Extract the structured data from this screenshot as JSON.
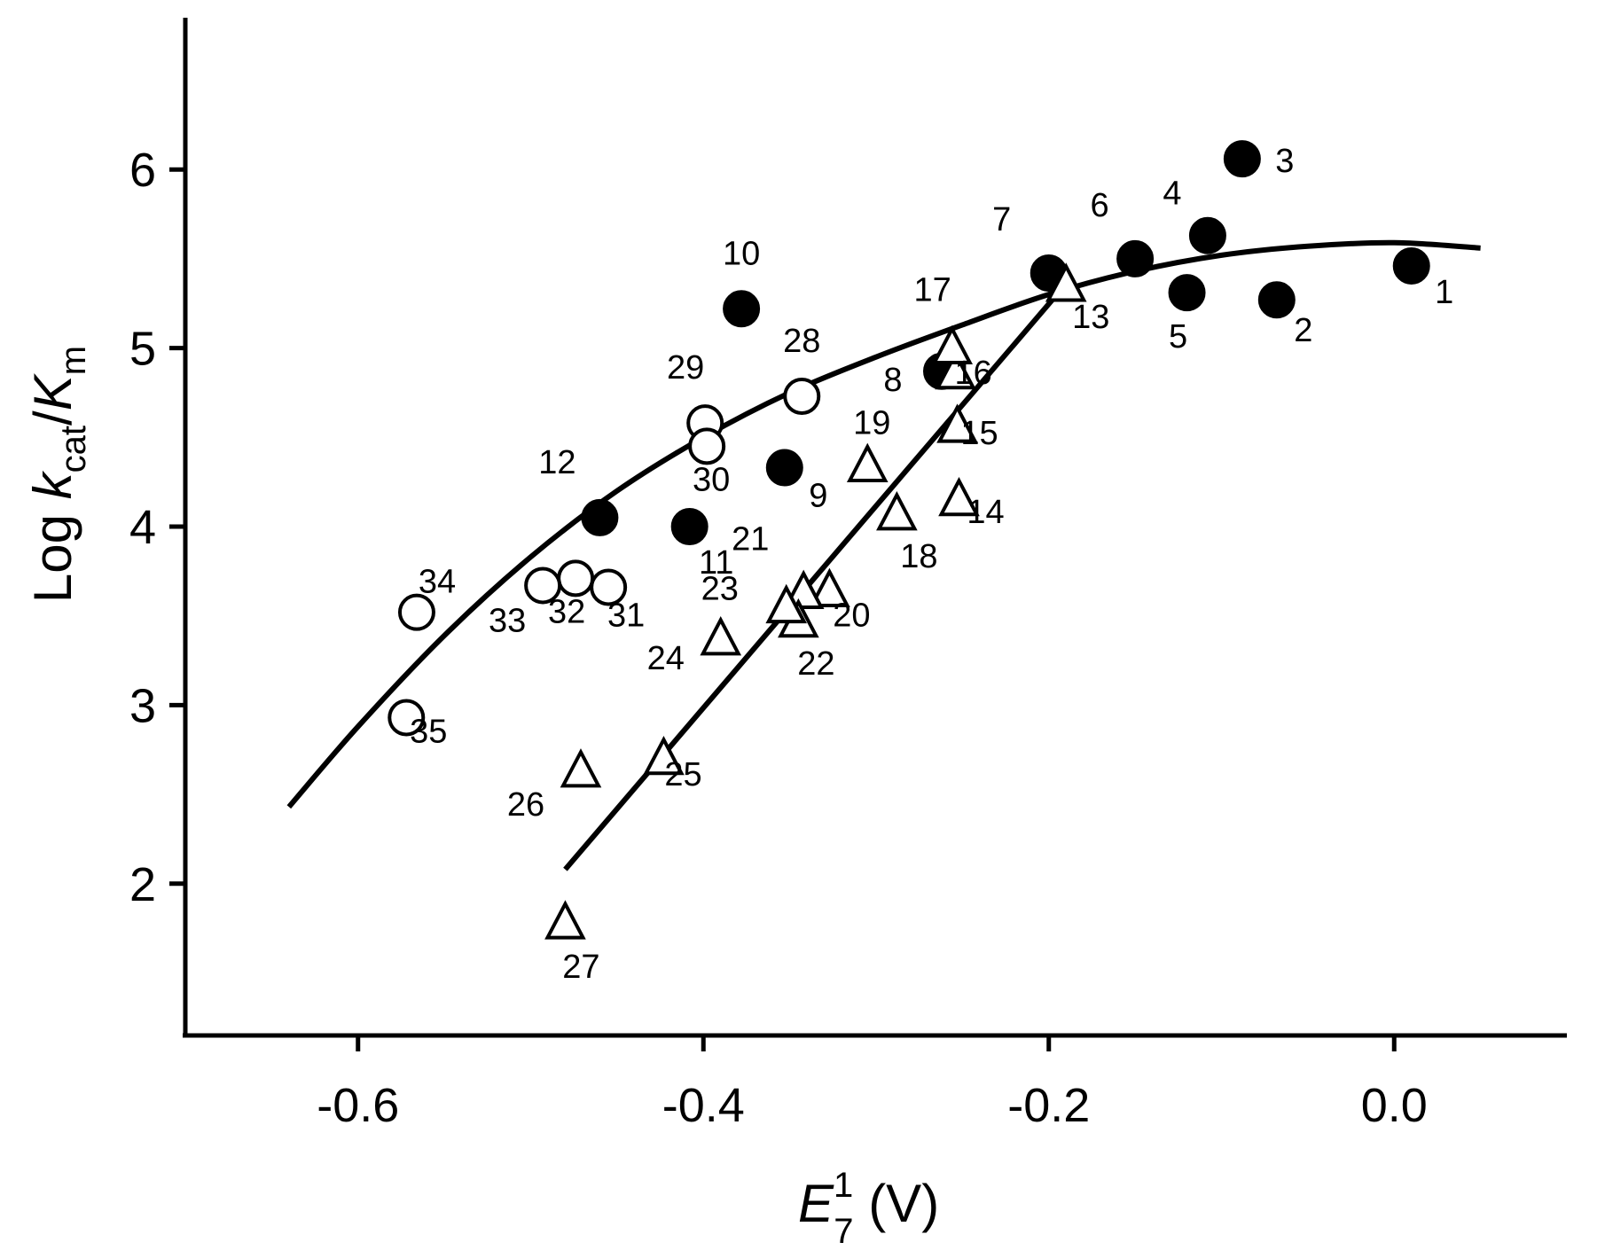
{
  "chart_data": {
    "type": "scatter",
    "xlabel": {
      "main": "E",
      "sup": "1",
      "sub": "7",
      "unit": " (V)"
    },
    "ylabel": {
      "prefix": "Log ",
      "k": "k",
      "cat": "cat",
      "slash": "/",
      "K": "K",
      "m": "m"
    },
    "xlim": [
      -0.7,
      0.1
    ],
    "ylim": [
      1.15,
      6.85
    ],
    "x_ticks": [
      -0.6,
      -0.4,
      -0.2,
      0.0
    ],
    "x_tick_labels": [
      "-0.6",
      "-0.4",
      "-0.2",
      "0.0"
    ],
    "y_ticks": [
      2,
      3,
      4,
      5,
      6
    ],
    "y_tick_labels": [
      "2",
      "3",
      "4",
      "5",
      "6"
    ],
    "series": [
      {
        "name": "filled-circles",
        "marker": "filled-circle",
        "points": [
          {
            "id": "1",
            "x": 0.01,
            "y": 5.46
          },
          {
            "id": "2",
            "x": -0.068,
            "y": 5.27
          },
          {
            "id": "3",
            "x": -0.088,
            "y": 6.06
          },
          {
            "id": "4",
            "x": -0.108,
            "y": 5.63
          },
          {
            "id": "5",
            "x": -0.12,
            "y": 5.31
          },
          {
            "id": "6",
            "x": -0.15,
            "y": 5.5
          },
          {
            "id": "7",
            "x": -0.2,
            "y": 5.42
          },
          {
            "id": "8",
            "x": -0.262,
            "y": 4.87
          },
          {
            "id": "9",
            "x": -0.353,
            "y": 4.33
          },
          {
            "id": "10",
            "x": -0.378,
            "y": 5.22
          },
          {
            "id": "11",
            "x": -0.408,
            "y": 4.0
          },
          {
            "id": "12",
            "x": -0.46,
            "y": 4.05
          }
        ]
      },
      {
        "name": "open-triangles",
        "marker": "open-triangle",
        "points": [
          {
            "id": "13",
            "x": -0.19,
            "y": 5.34
          },
          {
            "id": "14",
            "x": -0.252,
            "y": 4.14
          },
          {
            "id": "15",
            "x": -0.253,
            "y": 4.55
          },
          {
            "id": "16",
            "x": -0.254,
            "y": 4.85
          },
          {
            "id": "17",
            "x": -0.256,
            "y": 4.99
          },
          {
            "id": "18",
            "x": -0.288,
            "y": 4.06
          },
          {
            "id": "19",
            "x": -0.305,
            "y": 4.33
          },
          {
            "id": "20",
            "x": -0.327,
            "y": 3.63
          },
          {
            "id": "21",
            "x": -0.342,
            "y": 3.62
          },
          {
            "id": "22",
            "x": -0.345,
            "y": 3.46
          },
          {
            "id": "23",
            "x": -0.352,
            "y": 3.54
          },
          {
            "id": "24",
            "x": -0.39,
            "y": 3.36
          },
          {
            "id": "25",
            "x": -0.423,
            "y": 2.69
          },
          {
            "id": "26",
            "x": -0.471,
            "y": 2.62
          },
          {
            "id": "27",
            "x": -0.48,
            "y": 1.77
          }
        ]
      },
      {
        "name": "open-circles",
        "marker": "open-circle",
        "points": [
          {
            "id": "28",
            "x": -0.343,
            "y": 4.73
          },
          {
            "id": "29",
            "x": -0.399,
            "y": 4.58
          },
          {
            "id": "30",
            "x": -0.398,
            "y": 4.45
          },
          {
            "id": "31",
            "x": -0.455,
            "y": 3.66
          },
          {
            "id": "32",
            "x": -0.474,
            "y": 3.71
          },
          {
            "id": "33",
            "x": -0.493,
            "y": 3.67
          },
          {
            "id": "34",
            "x": -0.566,
            "y": 3.52
          },
          {
            "id": "35",
            "x": -0.572,
            "y": 2.93
          }
        ]
      }
    ],
    "fits": [
      {
        "name": "curve-fit",
        "type": "curve",
        "points": [
          [
            -0.64,
            2.43
          ],
          [
            -0.6,
            2.88
          ],
          [
            -0.55,
            3.39
          ],
          [
            -0.5,
            3.83
          ],
          [
            -0.45,
            4.2
          ],
          [
            -0.4,
            4.5
          ],
          [
            -0.35,
            4.75
          ],
          [
            -0.3,
            4.95
          ],
          [
            -0.25,
            5.13
          ],
          [
            -0.2,
            5.3
          ],
          [
            -0.15,
            5.43
          ],
          [
            -0.1,
            5.52
          ],
          [
            -0.05,
            5.57
          ],
          [
            0.0,
            5.59
          ],
          [
            0.05,
            5.56
          ]
        ]
      },
      {
        "name": "line-fit",
        "type": "line",
        "points": [
          [
            -0.48,
            2.08
          ],
          [
            -0.19,
            5.36
          ]
        ]
      }
    ]
  }
}
